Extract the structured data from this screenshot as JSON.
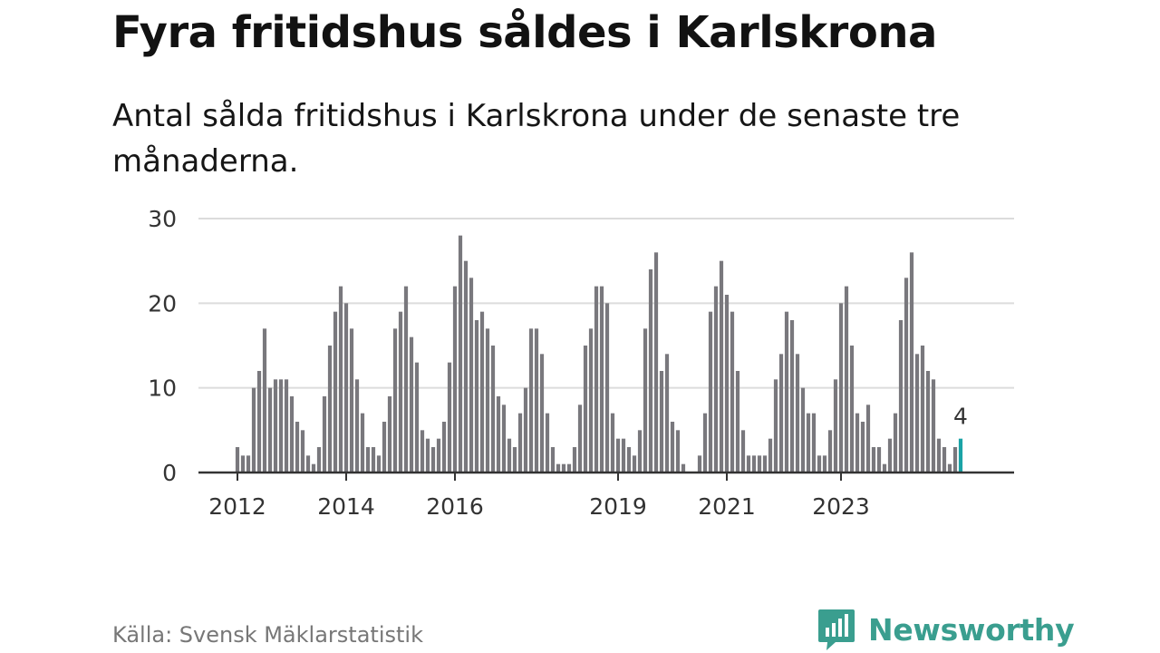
{
  "header": {
    "title": "Fyra fritidshus såldes i Karlskrona",
    "subtitle": "Antal sålda fritidshus i Karlskrona under de senaste tre månaderna."
  },
  "footer": {
    "source": "Källa: Svensk Mäklarstatistik",
    "brand": "Newsworthy",
    "brand_icon": "bar-chart-speech-bubble-icon"
  },
  "colors": {
    "bar": "#79787d",
    "highlight": "#1aa3a6",
    "grid": "#dcdcdc",
    "axis": "#333333",
    "brand": "#3a9e8f"
  },
  "chart_data": {
    "type": "bar",
    "title": "Fyra fritidshus såldes i Karlskrona",
    "subtitle": "Antal sålda fritidshus i Karlskrona under de senaste tre månaderna.",
    "xlabel": "",
    "ylabel": "",
    "ylim": [
      0,
      30
    ],
    "yticks": [
      0,
      10,
      20,
      30
    ],
    "xticks": [
      {
        "label": "2012",
        "index": 0
      },
      {
        "label": "2014",
        "index": 20
      },
      {
        "label": "2016",
        "index": 40
      },
      {
        "label": "2019",
        "index": 70
      },
      {
        "label": "2021",
        "index": 90
      },
      {
        "label": "2023",
        "index": 111
      }
    ],
    "values": [
      3,
      2,
      2,
      10,
      12,
      17,
      10,
      11,
      11,
      11,
      9,
      6,
      5,
      2,
      1,
      3,
      9,
      15,
      19,
      22,
      20,
      17,
      11,
      7,
      3,
      3,
      2,
      6,
      9,
      17,
      19,
      22,
      16,
      13,
      5,
      4,
      3,
      4,
      6,
      13,
      22,
      28,
      25,
      23,
      18,
      19,
      17,
      15,
      9,
      8,
      4,
      3,
      7,
      10,
      17,
      17,
      14,
      7,
      3,
      1,
      1,
      1,
      3,
      8,
      15,
      17,
      22,
      22,
      20,
      7,
      4,
      4,
      3,
      2,
      5,
      17,
      24,
      26,
      12,
      14,
      6,
      5,
      1,
      0,
      0,
      2,
      7,
      19,
      22,
      25,
      21,
      19,
      12,
      5,
      2,
      2,
      2,
      2,
      4,
      11,
      14,
      19,
      18,
      14,
      10,
      7,
      7,
      2,
      2,
      5,
      11,
      20,
      22,
      15,
      7,
      6,
      8,
      3,
      3,
      1,
      4,
      7,
      18,
      23,
      26,
      14,
      15,
      12,
      11,
      4,
      3,
      1,
      3,
      4
    ],
    "highlight_index": 133,
    "highlight_label": "4",
    "grid": true,
    "legend": "none"
  }
}
